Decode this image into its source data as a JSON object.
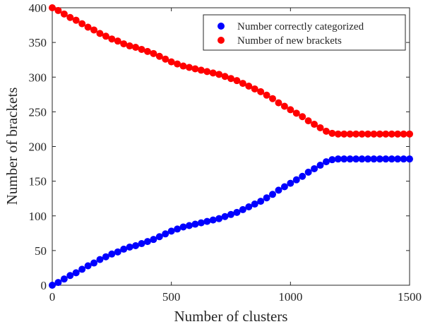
{
  "chart_data": {
    "type": "scatter",
    "title": "",
    "xlabel": "Number of clusters",
    "ylabel": "Number of brackets",
    "xlim": [
      0,
      1500
    ],
    "ylim": [
      0,
      400
    ],
    "xticks": [
      "0",
      "500",
      "1000",
      "1500"
    ],
    "yticks": [
      "0",
      "50",
      "100",
      "150",
      "200",
      "250",
      "300",
      "350",
      "400"
    ],
    "grid": false,
    "legend_position": "top-right",
    "series": [
      {
        "name": "Number correctly categorized",
        "color": "#0000ff",
        "x": [
          0,
          25,
          50,
          75,
          100,
          125,
          150,
          175,
          200,
          225,
          250,
          275,
          300,
          325,
          350,
          375,
          400,
          425,
          450,
          475,
          500,
          525,
          550,
          575,
          600,
          625,
          650,
          675,
          700,
          725,
          750,
          775,
          800,
          825,
          850,
          875,
          900,
          925,
          950,
          975,
          1000,
          1025,
          1050,
          1075,
          1100,
          1125,
          1150,
          1175,
          1200,
          1225,
          1250,
          1275,
          1300,
          1325,
          1350,
          1375,
          1400,
          1425,
          1450,
          1475,
          1500
        ],
        "y": [
          0,
          4,
          9,
          14,
          18,
          23,
          28,
          32,
          37,
          41,
          45,
          48,
          52,
          55,
          57,
          60,
          63,
          66,
          70,
          74,
          78,
          81,
          84,
          86,
          88,
          90,
          92,
          94,
          96,
          99,
          102,
          105,
          109,
          113,
          117,
          121,
          126,
          131,
          137,
          142,
          147,
          152,
          157,
          163,
          168,
          173,
          178,
          181,
          182,
          182,
          182,
          182,
          182,
          182,
          182,
          182,
          182,
          182,
          182,
          182,
          182
        ]
      },
      {
        "name": "Number of new brackets",
        "color": "#ff0000",
        "x": [
          0,
          25,
          50,
          75,
          100,
          125,
          150,
          175,
          200,
          225,
          250,
          275,
          300,
          325,
          350,
          375,
          400,
          425,
          450,
          475,
          500,
          525,
          550,
          575,
          600,
          625,
          650,
          675,
          700,
          725,
          750,
          775,
          800,
          825,
          850,
          875,
          900,
          925,
          950,
          975,
          1000,
          1025,
          1050,
          1075,
          1100,
          1125,
          1150,
          1175,
          1200,
          1225,
          1250,
          1275,
          1300,
          1325,
          1350,
          1375,
          1400,
          1425,
          1450,
          1475,
          1500
        ],
        "y": [
          400,
          396,
          391,
          386,
          382,
          377,
          372,
          368,
          363,
          359,
          355,
          352,
          348,
          345,
          343,
          340,
          337,
          334,
          330,
          326,
          322,
          319,
          316,
          314,
          312,
          310,
          308,
          306,
          304,
          301,
          298,
          295,
          291,
          287,
          283,
          279,
          274,
          269,
          263,
          258,
          253,
          248,
          243,
          237,
          232,
          227,
          222,
          219,
          218,
          218,
          218,
          218,
          218,
          218,
          218,
          218,
          218,
          218,
          218,
          218,
          218
        ]
      }
    ]
  }
}
